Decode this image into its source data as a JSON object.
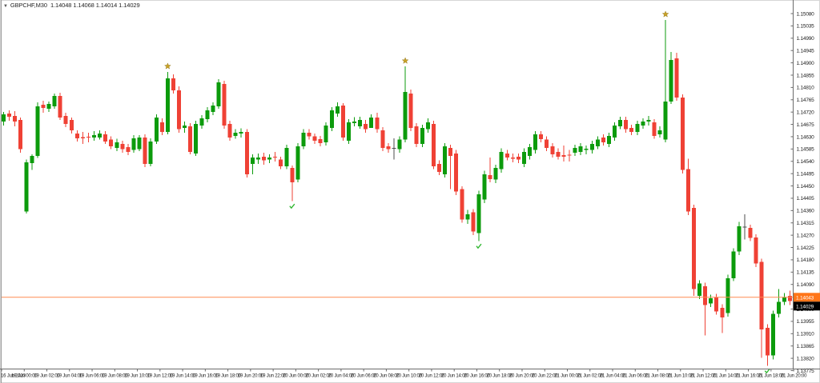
{
  "header": {
    "symbol_timeframe": "GBPCHF,M30",
    "ohlc_readout": "1.14048 1.14068 1.14014 1.14029"
  },
  "colors": {
    "bull": "#0c9b0c",
    "bear": "#ef4135",
    "doji_dark": "#4d4d4d",
    "star": "#c9a227",
    "check": "#2db52d",
    "price_line": "#ff8a50",
    "ask_badge_bg": "#ff7519",
    "bid_badge_bg": "#000000",
    "badge_text": "#ffffff",
    "axis_text": "#1a1a1a",
    "axis_line": "#6b6b6b",
    "window_edge": "#9a9a9a"
  },
  "chart_data": {
    "type": "candlestick",
    "symbol": "GBPCHF",
    "timeframe": "M30",
    "last_candle": {
      "open": "1.14048",
      "high": "1.14068",
      "low": "1.14014",
      "close": "1.14029"
    },
    "price_axis": {
      "max": 1.1508,
      "min": 1.13775,
      "step": 0.00045,
      "labels": [
        "1.15080",
        "1.15035",
        "1.14990",
        "1.14945",
        "1.14900",
        "1.14855",
        "1.14810",
        "1.14765",
        "1.14720",
        "1.14675",
        "1.14630",
        "1.14585",
        "1.14540",
        "1.14495",
        "1.14450",
        "1.14405",
        "1.14360",
        "1.14315",
        "1.14270",
        "1.14225",
        "1.14180",
        "1.14135",
        "1.14090",
        "1.14000",
        "1.13955",
        "1.13910",
        "1.13865",
        "1.13820",
        "1.13775"
      ]
    },
    "time_axis_labels": [
      "16 Jun 2023",
      "19 Jun 00:00",
      "19 Jun 02:00",
      "19 Jun 04:00",
      "19 Jun 06:00",
      "19 Jun 08:00",
      "19 Jun 10:00",
      "19 Jun 12:00",
      "19 Jun 14:00",
      "19 Jun 16:00",
      "19 Jun 18:00",
      "19 Jun 20:00",
      "19 Jun 22:00",
      "20 Jun 00:00",
      "20 Jun 02:00",
      "20 Jun 04:00",
      "20 Jun 06:00",
      "20 Jun 08:00",
      "20 Jun 10:00",
      "20 Jun 12:00",
      "20 Jun 14:00",
      "20 Jun 16:00",
      "20 Jun 18:00",
      "20 Jun 20:00",
      "20 Jun 22:00",
      "21 Jun 00:00",
      "21 Jun 02:00",
      "21 Jun 04:00",
      "21 Jun 06:00",
      "21 Jun 08:00",
      "21 Jun 10:00",
      "21 Jun 12:00",
      "21 Jun 14:00",
      "21 Jun 16:00",
      "21 Jun 18:00",
      "21 Jun 20:00"
    ],
    "price_line": {
      "value": 1.14043,
      "label": "1.14043"
    },
    "bid_badge": {
      "value": 1.14029,
      "label": "1.14029"
    },
    "star_marker_indices": [
      29,
      71,
      117
    ],
    "check_marker_indices": [
      51,
      84,
      135
    ],
    "dark_doji_indices": [
      69,
      131
    ],
    "candle_columns": [
      "time",
      "open",
      "high",
      "low",
      "close"
    ],
    "candles": [
      [
        "16 Jun 22:00",
        1.14686,
        1.14721,
        1.14671,
        1.14712
      ],
      [
        "16 Jun 22:30",
        1.14715,
        1.14727,
        1.14689,
        1.14703
      ],
      [
        "16 Jun 23:00",
        1.14706,
        1.14724,
        1.14668,
        1.14686
      ],
      [
        "16 Jun 23:30",
        1.14692,
        1.147,
        1.14572,
        1.14584
      ],
      [
        "19 Jun 00:00",
        1.14356,
        1.14546,
        1.1435,
        1.14537
      ],
      [
        "19 Jun 00:30",
        1.14534,
        1.14566,
        1.14508,
        1.1456
      ],
      [
        "19 Jun 01:00",
        1.1456,
        1.14756,
        1.14552,
        1.14741
      ],
      [
        "19 Jun 01:30",
        1.14747,
        1.14762,
        1.14718,
        1.14735
      ],
      [
        "19 Jun 02:00",
        1.14732,
        1.14759,
        1.14721,
        1.1475
      ],
      [
        "19 Jun 02:30",
        1.14741,
        1.14788,
        1.14732,
        1.14779
      ],
      [
        "19 Jun 03:00",
        1.14779,
        1.14791,
        1.14692,
        1.147
      ],
      [
        "19 Jun 03:30",
        1.14706,
        1.14718,
        1.14665,
        1.14677
      ],
      [
        "19 Jun 04:00",
        1.14692,
        1.147,
        1.14642,
        1.14654
      ],
      [
        "19 Jun 04:30",
        1.14642,
        1.14654,
        1.14613,
        1.14624
      ],
      [
        "19 Jun 05:00",
        1.14628,
        1.14648,
        1.14604,
        1.14624
      ],
      [
        "19 Jun 05:30",
        1.14628,
        1.14645,
        1.1461,
        1.14627
      ],
      [
        "19 Jun 06:00",
        1.14627,
        1.14651,
        1.14616,
        1.14636
      ],
      [
        "19 Jun 06:30",
        1.14627,
        1.14654,
        1.14619,
        1.14642
      ],
      [
        "19 Jun 07:00",
        1.14639,
        1.14651,
        1.14604,
        1.14613
      ],
      [
        "19 Jun 07:30",
        1.14619,
        1.14631,
        1.14584,
        1.14595
      ],
      [
        "19 Jun 08:00",
        1.14589,
        1.14622,
        1.14578,
        1.1461
      ],
      [
        "19 Jun 08:30",
        1.14604,
        1.14616,
        1.14572,
        1.14584
      ],
      [
        "19 Jun 09:00",
        1.14592,
        1.14604,
        1.14563,
        1.14575
      ],
      [
        "19 Jun 09:30",
        1.14581,
        1.14636,
        1.14572,
        1.14624
      ],
      [
        "19 Jun 10:00",
        1.14584,
        1.14636,
        1.14578,
        1.14627
      ],
      [
        "19 Jun 10:30",
        1.14627,
        1.14639,
        1.14519,
        1.14531
      ],
      [
        "19 Jun 11:00",
        1.14531,
        1.14624,
        1.14522,
        1.14613
      ],
      [
        "19 Jun 11:30",
        1.14613,
        1.14712,
        1.14604,
        1.147
      ],
      [
        "19 Jun 12:00",
        1.14683,
        1.14697,
        1.14636,
        1.14648
      ],
      [
        "19 Jun 12:30",
        1.14648,
        1.14867,
        1.14639,
        1.14843
      ],
      [
        "19 Jun 13:00",
        1.14843,
        1.14858,
        1.14788,
        1.148
      ],
      [
        "19 Jun 13:30",
        1.148,
        1.14814,
        1.14645,
        1.14657
      ],
      [
        "19 Jun 14:00",
        1.14662,
        1.14686,
        1.14645,
        1.14671
      ],
      [
        "19 Jun 14:30",
        1.14668,
        1.1468,
        1.14566,
        1.14575
      ],
      [
        "19 Jun 15:00",
        1.14569,
        1.14689,
        1.1456,
        1.14677
      ],
      [
        "19 Jun 15:30",
        1.14671,
        1.14709,
        1.14659,
        1.14697
      ],
      [
        "19 Jun 16:00",
        1.14694,
        1.14738,
        1.14683,
        1.14727
      ],
      [
        "19 Jun 16:30",
        1.14721,
        1.14756,
        1.14709,
        1.14744
      ],
      [
        "19 Jun 17:00",
        1.14741,
        1.1484,
        1.14732,
        1.14829
      ],
      [
        "19 Jun 17:30",
        1.14823,
        1.14834,
        1.14659,
        1.14671
      ],
      [
        "19 Jun 18:00",
        1.14677,
        1.14689,
        1.14616,
        1.14627
      ],
      [
        "19 Jun 18:30",
        1.14633,
        1.14657,
        1.14622,
        1.14645
      ],
      [
        "19 Jun 19:00",
        1.14642,
        1.1466,
        1.14627,
        1.14648
      ],
      [
        "19 Jun 19:30",
        1.14648,
        1.14657,
        1.14481,
        1.14493
      ],
      [
        "19 Jun 20:00",
        1.14531,
        1.14566,
        1.14493,
        1.14554
      ],
      [
        "19 Jun 20:30",
        1.14546,
        1.14569,
        1.14531,
        1.14554
      ],
      [
        "19 Jun 21:00",
        1.14557,
        1.14572,
        1.14528,
        1.14543
      ],
      [
        "19 Jun 21:30",
        1.14546,
        1.14566,
        1.14534,
        1.14554
      ],
      [
        "19 Jun 22:00",
        1.14556,
        1.14575,
        1.1454,
        1.14554
      ],
      [
        "19 Jun 22:30",
        1.14546,
        1.14557,
        1.14511,
        1.14522
      ],
      [
        "19 Jun 23:00",
        1.14522,
        1.14601,
        1.14511,
        1.14589
      ],
      [
        "19 Jun 23:30",
        1.14516,
        1.14525,
        1.14394,
        1.14464
      ],
      [
        "20 Jun 00:00",
        1.14473,
        1.14607,
        1.14464,
        1.14595
      ],
      [
        "20 Jun 00:30",
        1.14595,
        1.14657,
        1.14584,
        1.14645
      ],
      [
        "20 Jun 01:00",
        1.14645,
        1.14657,
        1.14619,
        1.14631
      ],
      [
        "20 Jun 01:30",
        1.14631,
        1.14642,
        1.14604,
        1.14616
      ],
      [
        "20 Jun 02:00",
        1.14621,
        1.14633,
        1.14595,
        1.14607
      ],
      [
        "20 Jun 02:30",
        1.1461,
        1.14683,
        1.14598,
        1.14671
      ],
      [
        "20 Jun 03:00",
        1.14662,
        1.14738,
        1.14651,
        1.14727
      ],
      [
        "20 Jun 03:30",
        1.14715,
        1.14756,
        1.14703,
        1.14741
      ],
      [
        "20 Jun 04:00",
        1.14744,
        1.14753,
        1.14616,
        1.14627
      ],
      [
        "20 Jun 04:30",
        1.14616,
        1.14694,
        1.14604,
        1.14683
      ],
      [
        "20 Jun 05:00",
        1.1468,
        1.14701,
        1.14668,
        1.14686
      ],
      [
        "20 Jun 05:30",
        1.14668,
        1.14703,
        1.14659,
        1.14692
      ],
      [
        "20 Jun 06:00",
        1.14677,
        1.14692,
        1.14645,
        1.14657
      ],
      [
        "20 Jun 06:30",
        1.14662,
        1.14712,
        1.14665,
        1.147
      ],
      [
        "20 Jun 07:00",
        1.147,
        1.14718,
        1.14645,
        1.14657
      ],
      [
        "20 Jun 07:30",
        1.14654,
        1.14665,
        1.14578,
        1.14589
      ],
      [
        "20 Jun 08:00",
        1.14595,
        1.14607,
        1.14572,
        1.14584
      ],
      [
        "20 Jun 08:30",
        1.14587,
        1.14624,
        1.14546,
        1.14586
      ],
      [
        "20 Jun 09:00",
        1.14584,
        1.14631,
        1.14572,
        1.14619
      ],
      [
        "20 Jun 09:30",
        1.14619,
        1.14887,
        1.1461,
        1.14794
      ],
      [
        "20 Jun 10:00",
        1.14788,
        1.14803,
        1.14651,
        1.14662
      ],
      [
        "20 Jun 10:30",
        1.14668,
        1.1468,
        1.14592,
        1.14604
      ],
      [
        "20 Jun 11:00",
        1.14604,
        1.14674,
        1.14592,
        1.14662
      ],
      [
        "20 Jun 11:30",
        1.14657,
        1.14697,
        1.14645,
        1.14683
      ],
      [
        "20 Jun 12:00",
        1.14677,
        1.14689,
        1.14511,
        1.14522
      ],
      [
        "20 Jun 12:30",
        1.14531,
        1.14543,
        1.1449,
        1.14502
      ],
      [
        "20 Jun 13:00",
        1.14493,
        1.14607,
        1.14481,
        1.14595
      ],
      [
        "20 Jun 13:30",
        1.14589,
        1.14601,
        1.14438,
        1.1456
      ],
      [
        "20 Jun 14:00",
        1.14569,
        1.14581,
        1.14417,
        1.14429
      ],
      [
        "20 Jun 14:30",
        1.14438,
        1.14449,
        1.14315,
        1.14327
      ],
      [
        "20 Jun 15:00",
        1.14327,
        1.14362,
        1.14312,
        1.14347
      ],
      [
        "20 Jun 15:30",
        1.14353,
        1.14365,
        1.14271,
        1.14283
      ],
      [
        "20 Jun 16:00",
        1.14277,
        1.14432,
        1.14248,
        1.1442
      ],
      [
        "20 Jun 16:30",
        1.144,
        1.14505,
        1.14388,
        1.14493
      ],
      [
        "20 Jun 17:00",
        1.1449,
        1.14554,
        1.14464,
        1.14475
      ],
      [
        "20 Jun 17:30",
        1.14473,
        1.14528,
        1.14461,
        1.14516
      ],
      [
        "20 Jun 18:00",
        1.14511,
        1.14587,
        1.14499,
        1.14575
      ],
      [
        "20 Jun 18:30",
        1.14569,
        1.14581,
        1.14543,
        1.14554
      ],
      [
        "20 Jun 19:00",
        1.14554,
        1.14569,
        1.14537,
        1.14549
      ],
      [
        "20 Jun 19:30",
        1.14557,
        1.14569,
        1.14534,
        1.14546
      ],
      [
        "20 Jun 20:00",
        1.14531,
        1.14587,
        1.14519,
        1.14575
      ],
      [
        "20 Jun 20:30",
        1.1456,
        1.14604,
        1.14546,
        1.14592
      ],
      [
        "20 Jun 21:00",
        1.14581,
        1.14651,
        1.14569,
        1.14639
      ],
      [
        "20 Jun 21:30",
        1.14639,
        1.14651,
        1.1461,
        1.14621
      ],
      [
        "20 Jun 22:00",
        1.14619,
        1.14631,
        1.14578,
        1.14589
      ],
      [
        "20 Jun 22:30",
        1.14595,
        1.14607,
        1.14554,
        1.14566
      ],
      [
        "20 Jun 23:00",
        1.14575,
        1.14587,
        1.14546,
        1.14557
      ],
      [
        "20 Jun 23:30",
        1.14563,
        1.14598,
        1.1454,
        1.14557
      ],
      [
        "21 Jun 00:00",
        1.14563,
        1.14581,
        1.1454,
        1.1456
      ],
      [
        "21 Jun 00:30",
        1.14572,
        1.14601,
        1.1456,
        1.14589
      ],
      [
        "21 Jun 01:00",
        1.14575,
        1.14607,
        1.14563,
        1.14595
      ],
      [
        "21 Jun 01:30",
        1.14581,
        1.14598,
        1.14566,
        1.14586
      ],
      [
        "21 Jun 02:00",
        1.14581,
        1.14616,
        1.14569,
        1.14604
      ],
      [
        "21 Jun 02:30",
        1.14595,
        1.14631,
        1.14584,
        1.14619
      ],
      [
        "21 Jun 03:00",
        1.14627,
        1.14639,
        1.14598,
        1.1461
      ],
      [
        "21 Jun 03:30",
        1.14604,
        1.14645,
        1.14592,
        1.14633
      ],
      [
        "21 Jun 04:00",
        1.14627,
        1.14683,
        1.14616,
        1.14671
      ],
      [
        "21 Jun 04:30",
        1.14668,
        1.14703,
        1.14657,
        1.14692
      ],
      [
        "21 Jun 05:00",
        1.14692,
        1.14703,
        1.14645,
        1.14657
      ],
      [
        "21 Jun 05:30",
        1.14662,
        1.14674,
        1.14636,
        1.14648
      ],
      [
        "21 Jun 06:00",
        1.14648,
        1.14689,
        1.14636,
        1.14677
      ],
      [
        "21 Jun 06:30",
        1.14671,
        1.14697,
        1.14659,
        1.14686
      ],
      [
        "21 Jun 07:00",
        1.14686,
        1.14706,
        1.14671,
        1.14692
      ],
      [
        "21 Jun 07:30",
        1.14683,
        1.14694,
        1.14622,
        1.14633
      ],
      [
        "21 Jun 08:00",
        1.14639,
        1.14668,
        1.14627,
        1.14654
      ],
      [
        "21 Jun 08:30",
        1.14619,
        1.15057,
        1.1461,
        1.14759
      ],
      [
        "21 Jun 09:00",
        1.14759,
        1.1494,
        1.1475,
        1.14911
      ],
      [
        "21 Jun 09:30",
        1.14916,
        1.14937,
        1.14762,
        1.14773
      ],
      [
        "21 Jun 10:00",
        1.14773,
        1.14785,
        1.14496,
        1.14508
      ],
      [
        "21 Jun 10:30",
        1.14511,
        1.14549,
        1.14344,
        1.14356
      ],
      [
        "21 Jun 11:00",
        1.1437,
        1.14382,
        1.14049,
        1.14073
      ],
      [
        "21 Jun 11:30",
        1.14049,
        1.14105,
        1.14037,
        1.14093
      ],
      [
        "21 Jun 12:00",
        1.14084,
        1.14096,
        1.13903,
        1.14014
      ],
      [
        "21 Jun 12:30",
        1.1402,
        1.14052,
        1.14008,
        1.1404
      ],
      [
        "21 Jun 13:00",
        1.14043,
        1.14055,
        1.13979,
        1.13991
      ],
      [
        "21 Jun 13:30",
        1.14005,
        1.14017,
        1.13912,
        1.1397
      ],
      [
        "21 Jun 14:00",
        1.13985,
        1.14125,
        1.13973,
        1.14113
      ],
      [
        "21 Jun 14:30",
        1.14113,
        1.14222,
        1.14102,
        1.1421
      ],
      [
        "21 Jun 15:00",
        1.1421,
        1.14318,
        1.14198,
        1.14303
      ],
      [
        "21 Jun 15:30",
        1.143,
        1.14347,
        1.14254,
        1.14297
      ],
      [
        "21 Jun 16:00",
        1.14297,
        1.14309,
        1.14248,
        1.1426
      ],
      [
        "21 Jun 16:30",
        1.14262,
        1.14274,
        1.14154,
        1.14166
      ],
      [
        "21 Jun 17:00",
        1.14172,
        1.14184,
        1.13822,
        1.13926
      ],
      [
        "21 Jun 17:30",
        1.13932,
        1.13944,
        1.13792,
        1.1383
      ],
      [
        "21 Jun 18:00",
        1.1383,
        1.13994,
        1.13816,
        1.13982
      ],
      [
        "21 Jun 18:30",
        1.13982,
        1.14073,
        1.1397,
        1.14026
      ],
      [
        "21 Jun 19:00",
        1.14026,
        1.14058,
        1.14014,
        1.14043
      ],
      [
        "21 Jun 19:30",
        1.14048,
        1.14068,
        1.14014,
        1.14029
      ]
    ]
  }
}
